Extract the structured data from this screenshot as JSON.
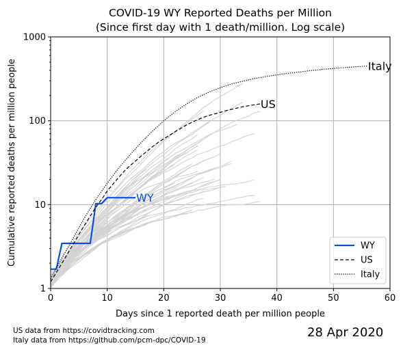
{
  "chart_data": {
    "type": "line",
    "title": "COVID-19 WY Reported Deaths per Million",
    "subtitle": "(Since first day with 1 death/million. Log scale)",
    "xlabel": "Days since 1 reported death per million people",
    "ylabel": "Cumulative reported deaths per million people",
    "xlim": [
      0,
      60
    ],
    "ylim": [
      1,
      1000
    ],
    "yscale": "log",
    "grid": true,
    "x_ticks": [
      "0",
      "10",
      "20",
      "30",
      "40",
      "50",
      "60"
    ],
    "y_ticks": [
      "1",
      "10",
      "100",
      "1000"
    ],
    "legend_position": "lower-right",
    "series": [
      {
        "name": "WY",
        "color": "#0b4fe0",
        "style": "solid",
        "end_label": "WY",
        "points": [
          [
            0,
            1.7
          ],
          [
            1,
            1.7
          ],
          [
            2,
            3.45
          ],
          [
            3,
            3.45
          ],
          [
            4,
            3.45
          ],
          [
            5,
            3.45
          ],
          [
            6,
            3.45
          ],
          [
            7,
            3.45
          ],
          [
            8,
            10.3
          ],
          [
            9,
            10.3
          ],
          [
            10,
            12.1
          ],
          [
            11,
            12.1
          ],
          [
            12,
            12.1
          ],
          [
            13,
            12.1
          ],
          [
            14,
            12.1
          ],
          [
            15,
            12.1
          ]
        ]
      },
      {
        "name": "US",
        "color": "#000000",
        "style": "dashed",
        "end_label": "US",
        "points": [
          [
            0,
            1.2
          ],
          [
            1,
            1.55
          ],
          [
            2,
            2
          ],
          [
            3,
            2.6
          ],
          [
            4,
            3.4
          ],
          [
            5,
            4.4
          ],
          [
            6,
            5.7
          ],
          [
            7,
            7.3
          ],
          [
            8,
            9.3
          ],
          [
            9,
            11.5
          ],
          [
            10,
            14.5
          ],
          [
            11,
            17.5
          ],
          [
            12,
            21
          ],
          [
            13,
            25
          ],
          [
            14,
            29
          ],
          [
            15,
            33
          ],
          [
            16,
            38
          ],
          [
            17,
            43
          ],
          [
            18,
            49
          ],
          [
            19,
            55
          ],
          [
            20,
            61
          ],
          [
            21,
            67
          ],
          [
            22,
            74
          ],
          [
            23,
            81
          ],
          [
            24,
            89
          ],
          [
            25,
            96
          ],
          [
            26,
            103
          ],
          [
            27,
            110
          ],
          [
            28,
            116
          ],
          [
            29,
            121
          ],
          [
            30,
            126
          ],
          [
            31,
            132
          ],
          [
            32,
            137
          ],
          [
            33,
            142
          ],
          [
            34,
            147
          ],
          [
            35,
            151
          ],
          [
            36,
            155
          ],
          [
            37,
            159
          ]
        ]
      },
      {
        "name": "Italy",
        "color": "#000000",
        "style": "dotted",
        "end_label": "Italy",
        "points": [
          [
            0,
            1.3
          ],
          [
            2,
            2.3
          ],
          [
            4,
            4
          ],
          [
            6,
            7
          ],
          [
            8,
            11.5
          ],
          [
            10,
            18
          ],
          [
            12,
            27
          ],
          [
            14,
            39
          ],
          [
            16,
            55
          ],
          [
            18,
            75
          ],
          [
            20,
            100
          ],
          [
            22,
            128
          ],
          [
            24,
            158
          ],
          [
            26,
            190
          ],
          [
            28,
            220
          ],
          [
            30,
            248
          ],
          [
            32,
            275
          ],
          [
            34,
            297
          ],
          [
            36,
            318
          ],
          [
            38,
            336
          ],
          [
            40,
            353
          ],
          [
            42,
            368
          ],
          [
            44,
            382
          ],
          [
            46,
            396
          ],
          [
            48,
            409
          ],
          [
            50,
            420
          ],
          [
            52,
            431
          ],
          [
            54,
            441
          ],
          [
            56,
            450
          ]
        ]
      }
    ]
  },
  "footer": {
    "source_us": "US data from https://covidtracking.com",
    "source_italy": "Italy data from https://github.com/pcm-dpc/COVID-19",
    "date": "28 Apr 2020"
  }
}
